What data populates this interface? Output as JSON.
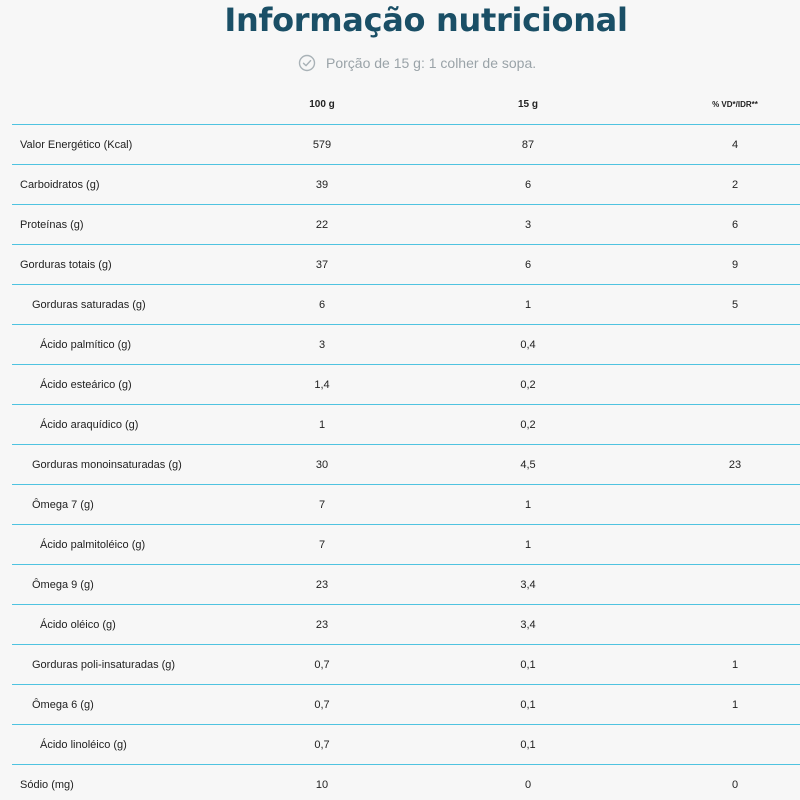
{
  "title": "Informação nutricional",
  "portion": {
    "icon": "check-circle-icon",
    "text": "Porção de 15 g: 1 colher de sopa."
  },
  "table": {
    "headers": [
      "",
      "100 g",
      "15 g",
      "% VD*/IDR**"
    ],
    "rows": [
      {
        "name": "Valor Energético (Kcal)",
        "level": 0,
        "v100": "579",
        "v15": "87",
        "vd": "4"
      },
      {
        "name": "Carboidratos (g)",
        "level": 0,
        "v100": "39",
        "v15": "6",
        "vd": "2"
      },
      {
        "name": "Proteínas (g)",
        "level": 0,
        "v100": "22",
        "v15": "3",
        "vd": "6"
      },
      {
        "name": "Gorduras totais (g)",
        "level": 0,
        "v100": "37",
        "v15": "6",
        "vd": "9"
      },
      {
        "name": "Gorduras saturadas (g)",
        "level": 1,
        "v100": "6",
        "v15": "1",
        "vd": "5"
      },
      {
        "name": "Ácido palmítico (g)",
        "level": 2,
        "v100": "3",
        "v15": "0,4",
        "vd": ""
      },
      {
        "name": "Ácido esteárico (g)",
        "level": 2,
        "v100": "1,4",
        "v15": "0,2",
        "vd": ""
      },
      {
        "name": "Ácido araquídico (g)",
        "level": 2,
        "v100": "1",
        "v15": "0,2",
        "vd": ""
      },
      {
        "name": "Gorduras monoinsaturadas (g)",
        "level": 1,
        "v100": "30",
        "v15": "4,5",
        "vd": "23"
      },
      {
        "name": "Ômega 7 (g)",
        "level": 1,
        "v100": "7",
        "v15": "1",
        "vd": ""
      },
      {
        "name": "Ácido palmitoléico (g)",
        "level": 2,
        "v100": "7",
        "v15": "1",
        "vd": ""
      },
      {
        "name": "Ômega 9 (g)",
        "level": 1,
        "v100": "23",
        "v15": "3,4",
        "vd": ""
      },
      {
        "name": "Ácido oléico (g)",
        "level": 2,
        "v100": "23",
        "v15": "3,4",
        "vd": ""
      },
      {
        "name": "Gorduras poli-insaturadas (g)",
        "level": 1,
        "v100": "0,7",
        "v15": "0,1",
        "vd": "1"
      },
      {
        "name": "Ômega 6 (g)",
        "level": 1,
        "v100": "0,7",
        "v15": "0,1",
        "vd": "1"
      },
      {
        "name": "Ácido linoléico (g)",
        "level": 2,
        "v100": "0,7",
        "v15": "0,1",
        "vd": ""
      },
      {
        "name": "Sódio (mg)",
        "level": 0,
        "v100": "10",
        "v15": "0",
        "vd": "0"
      }
    ]
  },
  "colors": {
    "title": "#1a4f66",
    "divider": "#4fc3e0",
    "muted": "#9aa3a8"
  }
}
